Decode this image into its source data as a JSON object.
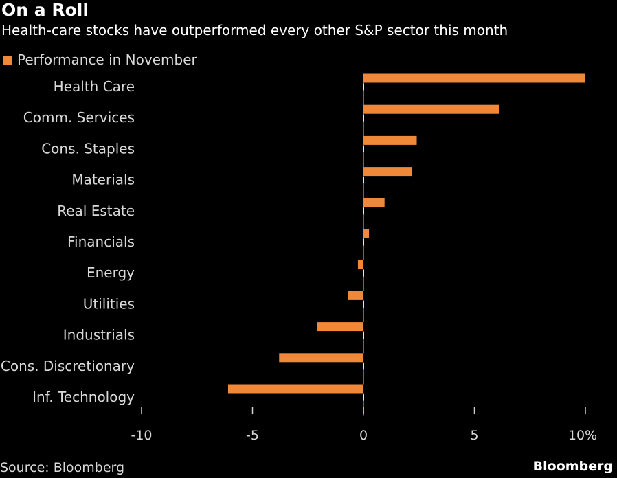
{
  "chart_data": {
    "type": "bar",
    "orientation": "horizontal",
    "title": "On a Roll",
    "subtitle": "Health-care stocks have outperformed every other S&P sector this month",
    "xlabel": "",
    "ylabel": "",
    "categories": [
      "Health Care",
      "Comm. Services",
      "Cons. Staples",
      "Materials",
      "Real Estate",
      "Financials",
      "Energy",
      "Utilities",
      "Industrials",
      "Cons. Discretionary",
      "Inf. Technology"
    ],
    "series": [
      {
        "name": "Performance in November",
        "values": [
          10.0,
          6.1,
          2.4,
          2.2,
          0.95,
          0.25,
          -0.25,
          -0.7,
          -2.1,
          -3.8,
          -6.1
        ]
      }
    ],
    "xlim": [
      -10,
      10
    ],
    "x_ticks": [
      -10,
      -5,
      0,
      5,
      10
    ],
    "x_tick_labels": [
      "-10",
      "-5",
      "0",
      "5",
      "10%"
    ],
    "legend_position": "top-left",
    "grid": false
  },
  "footer": {
    "source": "Source: Bloomberg",
    "brand": "Bloomberg"
  },
  "colors": {
    "background": "#000000",
    "bar": "#f0883a",
    "zero_line": "#2a6fdb",
    "tick": "#d0d0d0",
    "label": "#d9d9d9"
  }
}
